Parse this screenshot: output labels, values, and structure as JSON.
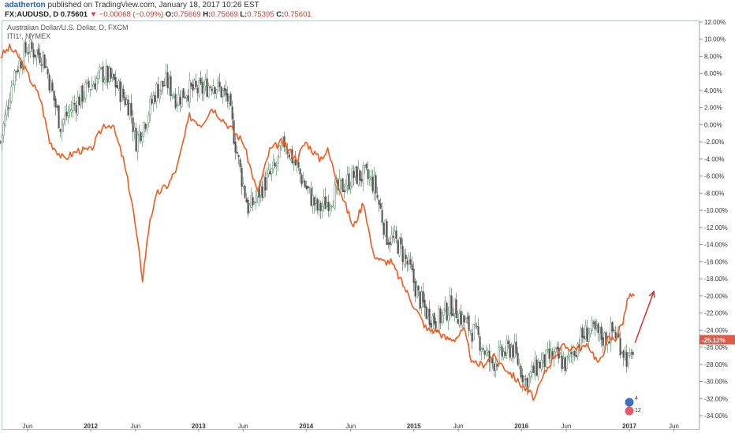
{
  "header": {
    "user": "adatherton",
    "published": "published on TradingView.com, January 18, 2017 10:26 EST",
    "symbol": "FX:AUDUSD, D",
    "last": "0.75601",
    "down_arrow": "▼",
    "change": "−0.00068 (−0.09%)",
    "o_label": "O:",
    "o_value": "0.75669",
    "h_label": "H:",
    "h_value": "0.75669",
    "l_label": "L:",
    "l_value": "0.75395",
    "c_label": "C:",
    "c_value": "0.75601"
  },
  "legend": {
    "main": "Australian Dollar/U.S. Dollar, D, FXCM",
    "compare": "ITI1!, NYMEX"
  },
  "badges": {
    "top": "4",
    "bottom": "12"
  },
  "chart_data": {
    "type": "line",
    "y_axis": {
      "unit": "percent",
      "range": [
        -35,
        12
      ],
      "ticks": [
        12,
        10,
        8,
        6,
        4,
        2,
        0,
        -2,
        -4,
        -6,
        -8,
        -10,
        -12,
        -14,
        -16,
        -18,
        -20,
        -22,
        -24,
        -26,
        -28,
        -30,
        -32,
        -34
      ],
      "tick_labels": [
        "12.00%",
        "10.00%",
        "8.00%",
        "6.00%",
        "4.00%",
        "2.00%",
        "0.00%",
        "-2.00%",
        "-4.00%",
        "-6.00%",
        "-8.00%",
        "-10.00%",
        "-12.00%",
        "-14.00%",
        "-16.00%",
        "-18.00%",
        "-20.00%",
        "-22.00%",
        "-24.00%",
        "-26.00%",
        "-28.00%",
        "-30.00%",
        "-32.00%",
        "-34.00%"
      ],
      "position": "right"
    },
    "x_axis": {
      "type": "date",
      "range": [
        "2011-03-01",
        "2017-07-31"
      ],
      "ticks": [
        "2011-06-01",
        "2012-01-01",
        "2012-06-01",
        "2013-01-01",
        "2013-06-01",
        "2014-01-01",
        "2014-06-01",
        "2015-01-01",
        "2015-06-01",
        "2016-01-01",
        "2016-06-01",
        "2017-01-01",
        "2017-06-01"
      ],
      "tick_labels": [
        "Jun",
        "2012",
        "Jun",
        "2013",
        "Jun",
        "2014",
        "Jun",
        "2015",
        "Jun",
        "2016",
        "Jun",
        "2017",
        "Jun"
      ]
    },
    "current_value_label": "-25.12%",
    "series": [
      {
        "name": "Australian Dollar/U.S. Dollar, D, FXCM",
        "style": "candles",
        "color_up": "#4a8a5a",
        "color_down": "#555555",
        "x": [
          "2011-03-01",
          "2011-04-15",
          "2011-06-01",
          "2011-07-25",
          "2011-08-15",
          "2011-09-20",
          "2011-10-30",
          "2011-12-15",
          "2012-02-10",
          "2012-03-20",
          "2012-05-15",
          "2012-06-01",
          "2012-07-10",
          "2012-08-10",
          "2012-09-15",
          "2012-10-20",
          "2012-11-20",
          "2013-01-10",
          "2013-02-20",
          "2013-04-10",
          "2013-05-20",
          "2013-06-20",
          "2013-08-10",
          "2013-09-20",
          "2013-10-20",
          "2013-11-30",
          "2014-01-10",
          "2014-02-10",
          "2014-04-10",
          "2014-06-10",
          "2014-07-20",
          "2014-08-20",
          "2014-09-10",
          "2014-10-01",
          "2014-11-10",
          "2014-12-20",
          "2015-01-15",
          "2015-02-15",
          "2015-03-20",
          "2015-05-10",
          "2015-06-20",
          "2015-08-10",
          "2015-09-20",
          "2015-10-20",
          "2015-12-01",
          "2016-01-15",
          "2016-03-01",
          "2016-04-20",
          "2016-06-01",
          "2016-07-20",
          "2016-08-20",
          "2016-10-10",
          "2016-11-10",
          "2016-12-20",
          "2017-01-05",
          "2017-01-18"
        ],
        "y": [
          -2,
          6,
          9,
          8,
          5,
          0,
          2,
          4,
          6,
          5,
          2,
          -2,
          1,
          4,
          5,
          3,
          4,
          4,
          5,
          3,
          -5,
          -10,
          -7,
          -5,
          -2,
          -5,
          -8,
          -10,
          -8,
          -6,
          -6,
          -7,
          -10,
          -13,
          -14,
          -17,
          -20,
          -22,
          -23,
          -21,
          -23,
          -25,
          -28,
          -27,
          -26,
          -30,
          -28,
          -27,
          -28,
          -25,
          -24,
          -25,
          -24,
          -27,
          -28,
          -25
        ]
      },
      {
        "name": "ITI1!, NYMEX",
        "style": "line",
        "color": "#f05a1e",
        "x": [
          "2011-03-01",
          "2011-04-01",
          "2011-05-01",
          "2011-06-15",
          "2011-07-15",
          "2011-08-15",
          "2011-10-01",
          "2011-11-20",
          "2012-01-01",
          "2012-02-15",
          "2012-03-15",
          "2012-04-20",
          "2012-05-20",
          "2012-06-25",
          "2012-07-20",
          "2012-08-15",
          "2012-09-20",
          "2012-10-20",
          "2012-12-01",
          "2013-01-10",
          "2013-02-15",
          "2013-04-10",
          "2013-06-01",
          "2013-07-20",
          "2013-08-30",
          "2013-10-10",
          "2013-11-30",
          "2013-12-30",
          "2014-02-15",
          "2014-03-15",
          "2014-04-30",
          "2014-06-10",
          "2014-07-15",
          "2014-08-15",
          "2014-09-15",
          "2014-10-15",
          "2014-11-15",
          "2014-12-15",
          "2015-01-15",
          "2015-02-15",
          "2015-03-20",
          "2015-04-20",
          "2015-05-20",
          "2015-06-20",
          "2015-07-20",
          "2015-08-25",
          "2015-09-25",
          "2015-10-25",
          "2015-11-25",
          "2015-12-20",
          "2016-01-20",
          "2016-02-15",
          "2016-03-20",
          "2016-04-20",
          "2016-05-20",
          "2016-06-20",
          "2016-07-20",
          "2016-08-20",
          "2016-09-20",
          "2016-10-20",
          "2016-11-15",
          "2016-12-10",
          "2016-12-30",
          "2017-01-18"
        ],
        "y": [
          8,
          9,
          8,
          5,
          3,
          -2,
          -4,
          -3,
          -3,
          0,
          0,
          -4,
          -9,
          -18,
          -11,
          -8,
          -7,
          -5,
          1,
          0,
          2,
          0,
          -2,
          -8,
          -3,
          -2,
          -4,
          -2,
          -4,
          -3,
          -8,
          -12,
          -9,
          -15,
          -16,
          -16,
          -18,
          -20,
          -22,
          -24,
          -24,
          -25,
          -25,
          -24,
          -28,
          -28,
          -27,
          -28,
          -29,
          -30,
          -31,
          -32,
          -29,
          -27,
          -26,
          -26,
          -26,
          -26,
          -28,
          -25,
          -25,
          -23,
          -20,
          -20
        ]
      }
    ],
    "annotation": {
      "type": "arrow",
      "color": "#e02020",
      "from": [
        "2017-01-20",
        -25.5
      ],
      "to": [
        "2017-03-25",
        -19.5
      ]
    }
  }
}
